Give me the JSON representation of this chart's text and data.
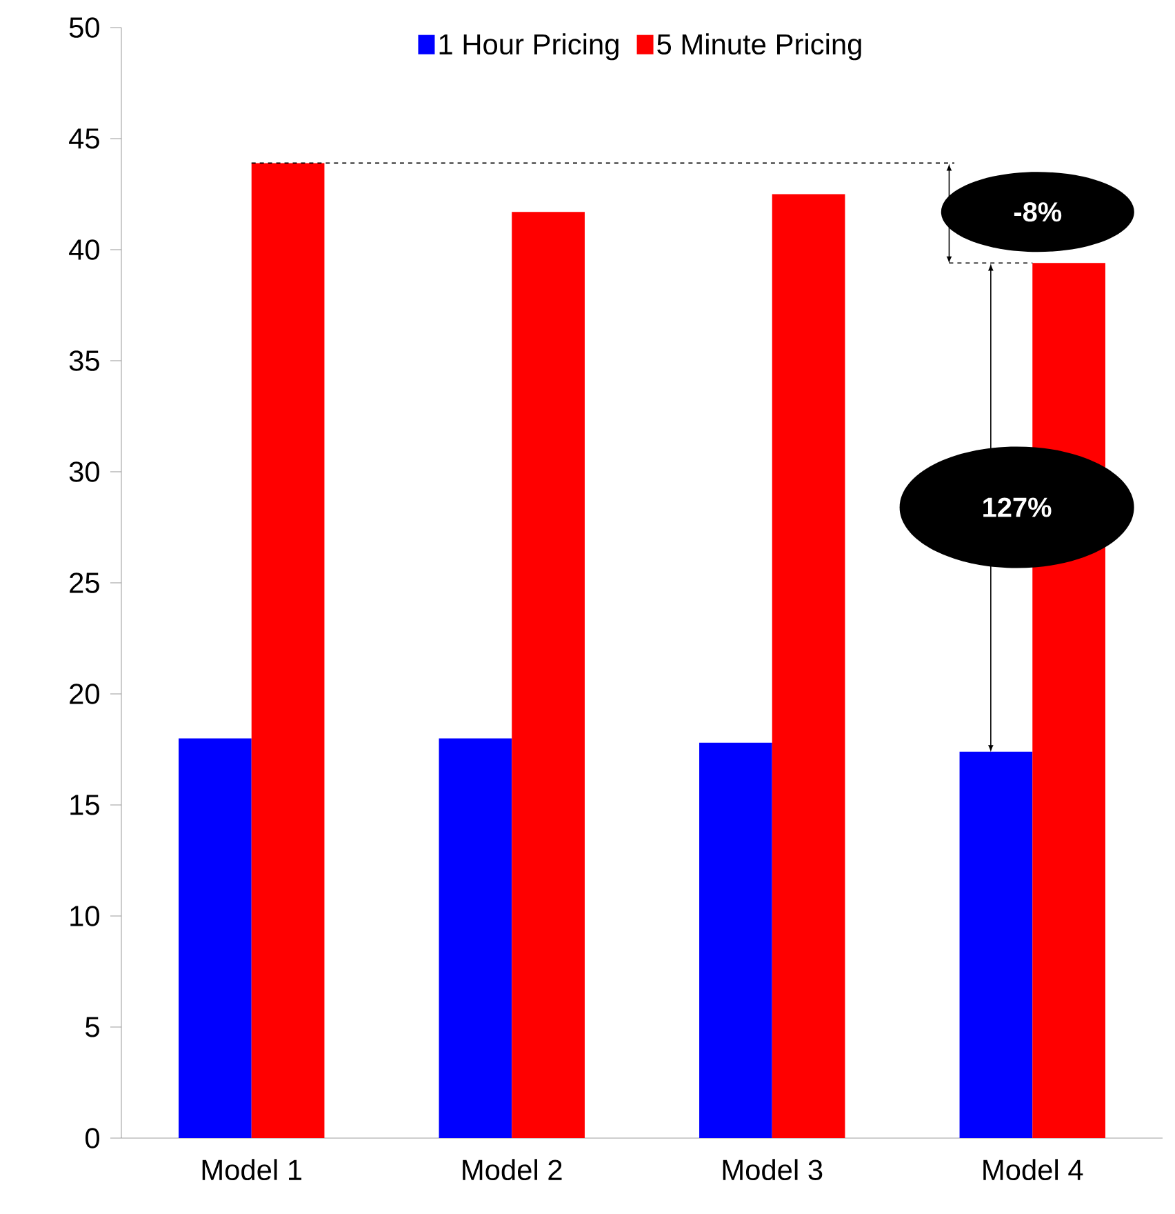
{
  "chart_data": {
    "type": "bar",
    "categories": [
      "Model 1",
      "Model 2",
      "Model 3",
      "Model 4"
    ],
    "series": [
      {
        "name": "1 Hour Pricing",
        "color": "#0000ff",
        "values": [
          18.0,
          18.0,
          17.8,
          17.4
        ]
      },
      {
        "name": "5 Minute Pricing",
        "color": "#ff0000",
        "values": [
          43.9,
          41.7,
          42.5,
          39.4
        ]
      }
    ],
    "ylim": [
      0,
      50
    ],
    "yticks": [
      0,
      5,
      10,
      15,
      20,
      25,
      30,
      35,
      40,
      45,
      50
    ],
    "legend": "top",
    "grid": false,
    "ref_lines": [
      {
        "axis": "y",
        "value": 43.9,
        "line_style": "dashed",
        "color": "#000000"
      },
      {
        "axis": "y",
        "value": 39.4,
        "line_style": "dashed",
        "color": "#000000"
      }
    ],
    "annotations": [
      "-8%",
      "127%"
    ]
  }
}
